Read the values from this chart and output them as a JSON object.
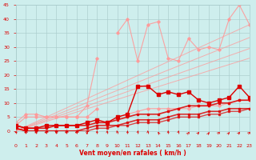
{
  "x": [
    0,
    1,
    2,
    3,
    4,
    5,
    6,
    7,
    8,
    9,
    10,
    11,
    12,
    13,
    14,
    15,
    16,
    17,
    18,
    19,
    20,
    21,
    22,
    23
  ],
  "light_jagged_top": [
    3,
    6,
    6,
    5,
    5,
    5,
    5,
    9,
    26,
    null,
    35,
    40,
    25,
    38,
    39,
    26,
    25,
    33,
    29,
    30,
    29,
    40,
    45,
    38
  ],
  "light_jagged_bot": [
    2,
    5,
    5,
    5,
    5,
    5,
    5,
    5,
    8,
    null,
    5,
    6,
    7,
    8,
    8,
    8,
    8,
    8,
    9,
    9,
    9,
    10,
    11,
    11
  ],
  "diag_slope1": [
    0.0,
    1.65
  ],
  "diag_slope2": [
    0.0,
    1.45
  ],
  "diag_slope3": [
    0.0,
    1.28
  ],
  "diag_slope4": [
    0.0,
    1.13
  ],
  "dark_top": [
    2,
    1,
    1,
    2,
    2,
    2,
    2,
    3,
    4,
    3,
    5,
    6,
    16,
    16,
    13,
    14,
    13,
    14,
    11,
    10,
    11,
    12,
    16,
    12
  ],
  "dark_mid": [
    2,
    1,
    1,
    1,
    2,
    2,
    2,
    2,
    3,
    3,
    4,
    5,
    6,
    6,
    6,
    7,
    8,
    9,
    9,
    9,
    10,
    10,
    11,
    11
  ],
  "dark_bot1": [
    1,
    0,
    0,
    0,
    0,
    0,
    0,
    1,
    2,
    2,
    2,
    3,
    4,
    4,
    4,
    5,
    6,
    6,
    6,
    7,
    7,
    8,
    8,
    8
  ],
  "dark_bot2": [
    1,
    0,
    0,
    0,
    0,
    0,
    0,
    0,
    1,
    1,
    2,
    2,
    3,
    3,
    3,
    4,
    5,
    5,
    5,
    6,
    6,
    7,
    7,
    8
  ],
  "arrow_angles": [
    225,
    200,
    210,
    195,
    210,
    200,
    195,
    270,
    90,
    90,
    100,
    90,
    80,
    90,
    110,
    90,
    85,
    70,
    65,
    75,
    60,
    70,
    65,
    60
  ],
  "background_color": "#ceeeed",
  "grid_color": "#aacccc",
  "dark_red": "#dd0000",
  "light_pink": "#ff9999",
  "xlabel": "Vent moyen/en rafales ( km/h )",
  "ylim": [
    0,
    45
  ],
  "xlim": [
    0,
    23
  ],
  "yticks": [
    0,
    5,
    10,
    15,
    20,
    25,
    30,
    35,
    40,
    45
  ],
  "xticks": [
    0,
    1,
    2,
    3,
    4,
    5,
    6,
    7,
    8,
    9,
    10,
    11,
    12,
    13,
    14,
    15,
    16,
    17,
    18,
    19,
    20,
    21,
    22,
    23
  ]
}
